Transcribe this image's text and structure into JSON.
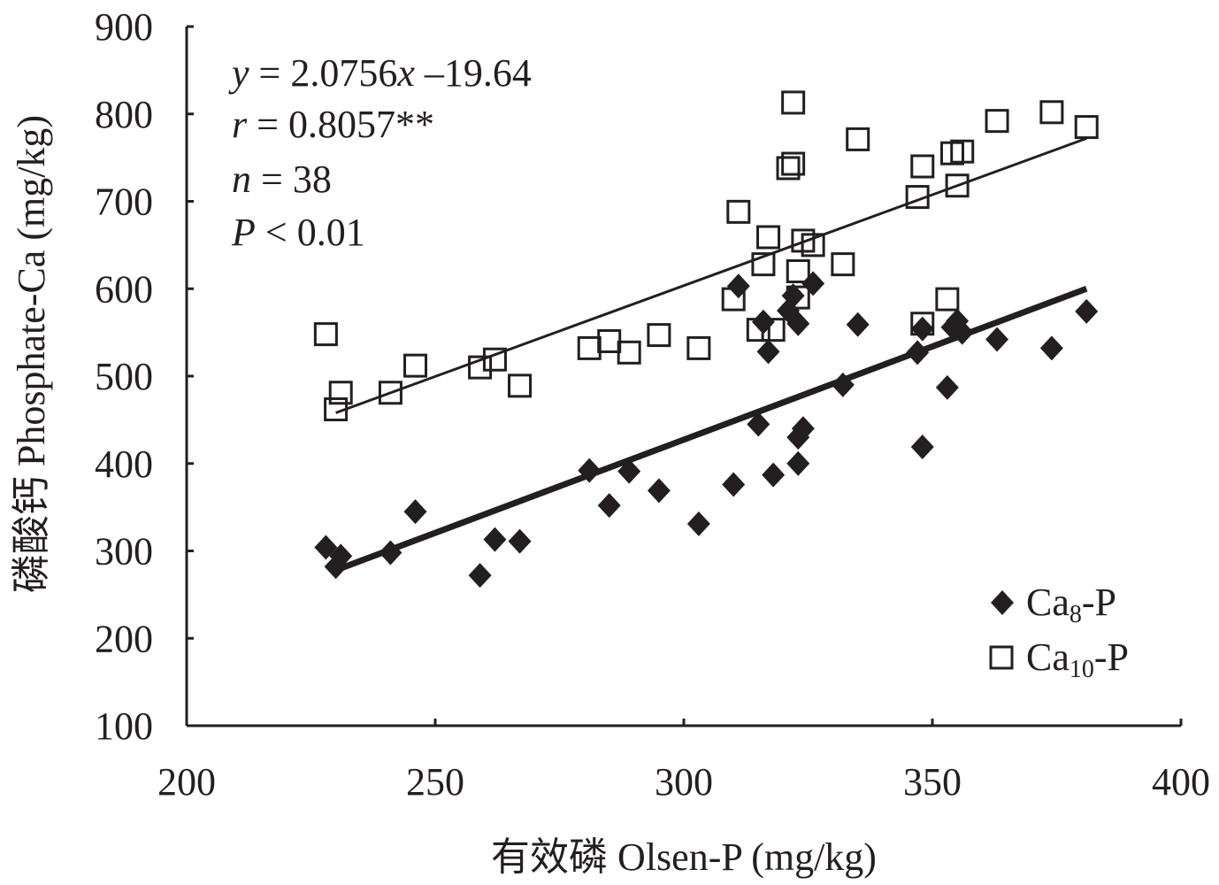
{
  "chart_data": {
    "type": "scatter",
    "xlabel": "有效磷 Olsen-P (mg/kg)",
    "ylabel": "磷酸钙 Phosphate-Ca (mg/kg)",
    "xlim": [
      200,
      400
    ],
    "ylim": [
      100,
      900
    ],
    "x_ticks": [
      "200",
      "250",
      "300",
      "350",
      "400"
    ],
    "y_ticks": [
      "100",
      "200",
      "300",
      "400",
      "500",
      "600",
      "700",
      "800",
      "900"
    ],
    "grid": false,
    "legend_position": "bottom-right",
    "annotation": {
      "equation": {
        "var": "y",
        "rest": " = 2.0756",
        "var2": "x",
        "rest2": " –19.64"
      },
      "r": {
        "var": "r",
        "rest": " = 0.8057**"
      },
      "n": {
        "var": "n",
        "rest": " = 38"
      },
      "p": {
        "var": "P",
        "rest": " < 0.01"
      }
    },
    "series": [
      {
        "name": "Ca8-P",
        "legend_main": "Ca",
        "legend_sub": "8",
        "legend_suffix": "-P",
        "marker": "filled-diamond",
        "color": "#231f20",
        "trendline": {
          "x": [
            230,
            381
          ],
          "y": [
            278,
            600
          ]
        },
        "points": [
          [
            228,
            304
          ],
          [
            230,
            282
          ],
          [
            231,
            294
          ],
          [
            241,
            298
          ],
          [
            246,
            345
          ],
          [
            259,
            272
          ],
          [
            262,
            313
          ],
          [
            267,
            311
          ],
          [
            281,
            392
          ],
          [
            285,
            352
          ],
          [
            289,
            391
          ],
          [
            295,
            369
          ],
          [
            303,
            331
          ],
          [
            310,
            376
          ],
          [
            311,
            603
          ],
          [
            315,
            445
          ],
          [
            316,
            562
          ],
          [
            317,
            528
          ],
          [
            318,
            387
          ],
          [
            321,
            575
          ],
          [
            322,
            592
          ],
          [
            323,
            400
          ],
          [
            323,
            560
          ],
          [
            323,
            430
          ],
          [
            324,
            440
          ],
          [
            326,
            606
          ],
          [
            332,
            490
          ],
          [
            335,
            559
          ],
          [
            347,
            527
          ],
          [
            348,
            419
          ],
          [
            348,
            554
          ],
          [
            353,
            487
          ],
          [
            354,
            556
          ],
          [
            355,
            563
          ],
          [
            356,
            550
          ],
          [
            363,
            542
          ],
          [
            374,
            532
          ],
          [
            381,
            574
          ]
        ]
      },
      {
        "name": "Ca10-P",
        "legend_main": "Ca",
        "legend_sub": "10",
        "legend_suffix": "-P",
        "marker": "open-square",
        "color": "#231f20",
        "trendline": {
          "x": [
            230,
            381
          ],
          "y": [
            458,
            772
          ]
        },
        "points": [
          [
            228,
            548
          ],
          [
            230,
            462
          ],
          [
            231,
            481
          ],
          [
            241,
            481
          ],
          [
            246,
            512
          ],
          [
            259,
            510
          ],
          [
            262,
            519
          ],
          [
            267,
            489
          ],
          [
            281,
            532
          ],
          [
            285,
            540
          ],
          [
            289,
            527
          ],
          [
            295,
            547
          ],
          [
            303,
            532
          ],
          [
            310,
            588
          ],
          [
            311,
            688
          ],
          [
            315,
            553
          ],
          [
            316,
            628
          ],
          [
            317,
            659
          ],
          [
            318,
            553
          ],
          [
            321,
            738
          ],
          [
            322,
            743
          ],
          [
            322,
            813
          ],
          [
            323,
            620
          ],
          [
            323,
            590
          ],
          [
            324,
            655
          ],
          [
            326,
            650
          ],
          [
            332,
            628
          ],
          [
            335,
            771
          ],
          [
            347,
            705
          ],
          [
            348,
            740
          ],
          [
            348,
            560
          ],
          [
            353,
            588
          ],
          [
            354,
            755
          ],
          [
            355,
            718
          ],
          [
            356,
            757
          ],
          [
            363,
            792
          ],
          [
            374,
            802
          ],
          [
            381,
            785
          ]
        ]
      }
    ]
  }
}
